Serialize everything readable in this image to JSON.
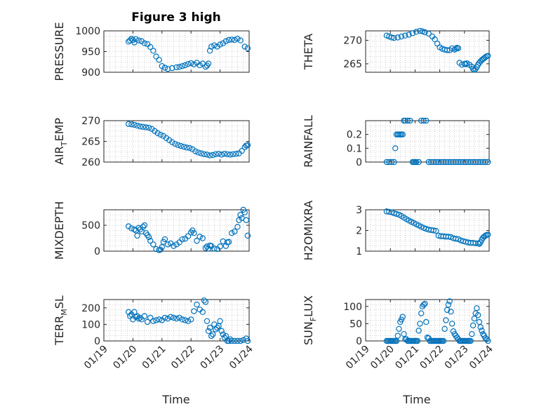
{
  "figure": {
    "title": "Figure 3 high",
    "time_label": "Time",
    "date_ticks": [
      "01/19",
      "01/20",
      "01/21",
      "01/22",
      "01/23",
      "01/24"
    ]
  },
  "colors": {
    "marker": "#0072BD",
    "axis": "#262626",
    "grid": "#b0b0b0"
  },
  "chart_data": [
    {
      "type": "scatter",
      "name": "pressure",
      "ylabel": "PRESSURE",
      "ylim": [
        900,
        1000
      ],
      "yticks": [
        900,
        950,
        1000
      ],
      "xlim": [
        0,
        5
      ],
      "xticklabels": [],
      "x": [
        0.85,
        0.9,
        0.95,
        1.0,
        1.05,
        1.1,
        1.2,
        1.3,
        1.4,
        1.5,
        1.6,
        1.7,
        1.8,
        1.9,
        2.0,
        2.1,
        2.2,
        2.35,
        2.5,
        2.6,
        2.7,
        2.8,
        2.9,
        3.0,
        3.1,
        3.2,
        3.3,
        3.4,
        3.5,
        3.55,
        3.6,
        3.65,
        3.7,
        3.8,
        3.9,
        4.0,
        4.1,
        4.2,
        4.3,
        4.4,
        4.5,
        4.6,
        4.7,
        4.85,
        4.95
      ],
      "y": [
        974,
        977,
        981,
        978,
        972,
        980,
        977,
        975,
        970,
        968,
        961,
        952,
        938,
        930,
        915,
        911,
        908,
        910,
        912,
        913,
        915,
        917,
        920,
        922,
        919,
        923,
        917,
        921,
        913,
        916,
        921,
        952,
        962,
        965,
        962,
        967,
        970,
        975,
        978,
        979,
        978,
        981,
        977,
        962,
        958
      ]
    },
    {
      "type": "scatter",
      "name": "theta",
      "ylabel": "THETA",
      "ylim": [
        263.2,
        272
      ],
      "yticks": [
        265,
        270
      ],
      "xlim": [
        0,
        5
      ],
      "xticklabels": [],
      "x": [
        0.85,
        0.95,
        1.05,
        1.15,
        1.3,
        1.45,
        1.6,
        1.75,
        1.9,
        2.05,
        2.2,
        2.3,
        2.4,
        2.55,
        2.7,
        2.8,
        2.9,
        3.0,
        3.1,
        3.2,
        3.3,
        3.4,
        3.5,
        3.6,
        3.65,
        3.7,
        3.75,
        3.8,
        3.9,
        4.0,
        4.05,
        4.1,
        4.2,
        4.3,
        4.35,
        4.4,
        4.45,
        4.5,
        4.55,
        4.6,
        4.65,
        4.7,
        4.75,
        4.8,
        4.85,
        4.9,
        4.95
      ],
      "y": [
        271.0,
        270.8,
        270.6,
        270.5,
        270.6,
        270.8,
        271.0,
        271.2,
        271.5,
        271.8,
        272.0,
        271.9,
        271.7,
        271.4,
        270.8,
        270.2,
        269.3,
        268.5,
        268.2,
        268.0,
        267.9,
        267.9,
        268.3,
        268.0,
        268.2,
        268.4,
        268.3,
        265.2,
        264.8,
        265.0,
        264.9,
        265.1,
        264.8,
        264.4,
        263.9,
        263.7,
        263.9,
        264.3,
        264.8,
        265.2,
        265.5,
        265.8,
        266.0,
        266.2,
        266.4,
        266.6,
        266.7
      ]
    },
    {
      "type": "scatter",
      "name": "air_temp",
      "ylabel_main": "AIR",
      "ylabel_sub": "T",
      "ylabel_rest": "EMP",
      "ylim": [
        260,
        270
      ],
      "yticks": [
        260,
        265,
        270
      ],
      "xlim": [
        0,
        5
      ],
      "xticklabels": [],
      "x": [
        0.85,
        0.95,
        1.05,
        1.15,
        1.25,
        1.35,
        1.45,
        1.55,
        1.65,
        1.75,
        1.85,
        1.95,
        2.05,
        2.15,
        2.25,
        2.35,
        2.45,
        2.55,
        2.65,
        2.75,
        2.85,
        2.95,
        3.05,
        3.15,
        3.25,
        3.35,
        3.45,
        3.55,
        3.65,
        3.75,
        3.85,
        3.95,
        4.05,
        4.15,
        4.25,
        4.35,
        4.45,
        4.55,
        4.65,
        4.75,
        4.85,
        4.9,
        4.95
      ],
      "y": [
        269.2,
        269.1,
        269.0,
        268.8,
        268.6,
        268.5,
        268.4,
        268.3,
        268.0,
        267.5,
        267.0,
        266.6,
        266.3,
        265.8,
        265.3,
        264.8,
        264.4,
        264.1,
        263.9,
        263.7,
        263.5,
        263.4,
        263.1,
        262.6,
        262.3,
        262.1,
        261.9,
        261.8,
        261.6,
        261.7,
        261.9,
        262.0,
        261.8,
        262.0,
        261.9,
        261.8,
        261.9,
        262.0,
        262.1,
        262.7,
        263.6,
        264.0,
        264.1
      ]
    },
    {
      "type": "scatter",
      "name": "rainfall",
      "ylabel": "RAINFALL",
      "ylim": [
        0,
        0.3
      ],
      "yticks": [
        0,
        0.1,
        0.2
      ],
      "yticklabels": [
        "0",
        "0.1",
        "0.2"
      ],
      "xlim": [
        0,
        5
      ],
      "xticklabels": [],
      "x": [
        0.85,
        0.95,
        1.05,
        1.15,
        1.2,
        1.25,
        1.3,
        1.35,
        1.4,
        1.45,
        1.5,
        1.55,
        1.6,
        1.7,
        1.8,
        1.9,
        1.95,
        2.0,
        2.05,
        2.15,
        2.25,
        2.35,
        2.45,
        2.55,
        2.65,
        2.75,
        2.85,
        2.95,
        3.05,
        3.15,
        3.25,
        3.35,
        3.45,
        3.55,
        3.65,
        3.75,
        3.85,
        3.95,
        4.05,
        4.15,
        4.25,
        4.35,
        4.45,
        4.55,
        4.65,
        4.75,
        4.85,
        4.95
      ],
      "y": [
        0,
        0,
        0,
        0,
        0.1,
        0.2,
        0.2,
        0.2,
        0.2,
        0.2,
        0.2,
        0.3,
        0.3,
        0.3,
        0.3,
        0,
        0,
        0,
        0,
        0,
        0.3,
        0.3,
        0.3,
        0,
        0,
        0,
        0,
        0,
        0,
        0,
        0,
        0,
        0,
        0,
        0,
        0,
        0,
        0,
        0,
        0,
        0,
        0,
        0,
        0,
        0,
        0,
        0,
        0
      ]
    },
    {
      "type": "scatter",
      "name": "mixdepth",
      "ylabel": "MIXDEPTH",
      "ylim": [
        0,
        800
      ],
      "yticks": [
        0,
        500
      ],
      "xlim": [
        0,
        5
      ],
      "xticklabels": [],
      "x": [
        0.85,
        0.95,
        1.05,
        1.1,
        1.15,
        1.2,
        1.25,
        1.3,
        1.35,
        1.4,
        1.45,
        1.5,
        1.55,
        1.6,
        1.7,
        1.8,
        1.9,
        1.95,
        2.0,
        2.05,
        2.1,
        2.2,
        2.3,
        2.4,
        2.5,
        2.6,
        2.7,
        2.8,
        2.9,
        3.0,
        3.05,
        3.1,
        3.2,
        3.3,
        3.4,
        3.5,
        3.55,
        3.6,
        3.65,
        3.7,
        3.8,
        3.9,
        4.0,
        4.1,
        4.2,
        4.25,
        4.3,
        4.4,
        4.5,
        4.6,
        4.65,
        4.7,
        4.75,
        4.8,
        4.85,
        4.9,
        4.95
      ],
      "y": [
        480,
        440,
        420,
        400,
        300,
        450,
        420,
        380,
        470,
        500,
        350,
        310,
        270,
        200,
        130,
        40,
        20,
        30,
        80,
        180,
        230,
        130,
        150,
        100,
        130,
        170,
        230,
        240,
        290,
        360,
        400,
        350,
        200,
        280,
        250,
        60,
        90,
        50,
        110,
        100,
        50,
        40,
        90,
        190,
        100,
        170,
        180,
        350,
        380,
        470,
        600,
        700,
        640,
        800,
        750,
        600,
        300
      ]
    },
    {
      "type": "scatter",
      "name": "h2omixra",
      "ylabel": "H2OMIXRA",
      "ylim": [
        1,
        3
      ],
      "yticks": [
        1,
        2,
        3
      ],
      "xlim": [
        0,
        5
      ],
      "xticklabels": [],
      "x": [
        0.85,
        0.95,
        1.05,
        1.15,
        1.25,
        1.35,
        1.45,
        1.55,
        1.65,
        1.75,
        1.85,
        1.95,
        2.05,
        2.15,
        2.25,
        2.35,
        2.45,
        2.55,
        2.65,
        2.75,
        2.85,
        2.95,
        3.05,
        3.15,
        3.25,
        3.35,
        3.45,
        3.55,
        3.65,
        3.75,
        3.85,
        3.95,
        4.05,
        4.15,
        4.25,
        4.35,
        4.45,
        4.55,
        4.6,
        4.65,
        4.7,
        4.75,
        4.8,
        4.85,
        4.9,
        4.95
      ],
      "y": [
        2.92,
        2.9,
        2.88,
        2.83,
        2.8,
        2.76,
        2.7,
        2.62,
        2.55,
        2.48,
        2.42,
        2.36,
        2.3,
        2.24,
        2.18,
        2.12,
        2.08,
        2.04,
        2.02,
        2.0,
        1.98,
        1.75,
        1.72,
        1.72,
        1.7,
        1.7,
        1.68,
        1.62,
        1.6,
        1.58,
        1.52,
        1.48,
        1.45,
        1.42,
        1.4,
        1.4,
        1.38,
        1.38,
        1.35,
        1.42,
        1.55,
        1.65,
        1.7,
        1.75,
        1.78,
        1.8
      ]
    },
    {
      "type": "scatter",
      "name": "terr_msl",
      "ylabel_main": "TERR",
      "ylabel_sub": "M",
      "ylabel_rest": "SL",
      "ylim": [
        0,
        250
      ],
      "yticks": [
        0,
        100,
        200
      ],
      "xlim": [
        0,
        5
      ],
      "xticklabels": [
        "01/19",
        "01/20",
        "01/21",
        "01/22",
        "01/23",
        "01/24"
      ],
      "x": [
        0.85,
        0.9,
        0.95,
        1.0,
        1.05,
        1.1,
        1.15,
        1.2,
        1.25,
        1.3,
        1.4,
        1.5,
        1.6,
        1.7,
        1.8,
        1.9,
        2.0,
        2.1,
        2.2,
        2.3,
        2.4,
        2.5,
        2.6,
        2.7,
        2.8,
        2.9,
        3.0,
        3.1,
        3.2,
        3.3,
        3.4,
        3.45,
        3.5,
        3.55,
        3.6,
        3.65,
        3.7,
        3.75,
        3.8,
        3.85,
        3.9,
        3.95,
        4.0,
        4.05,
        4.1,
        4.15,
        4.2,
        4.25,
        4.3,
        4.35,
        4.4,
        4.5,
        4.6,
        4.7,
        4.8,
        4.9,
        4.95
      ],
      "y": [
        175,
        150,
        160,
        130,
        175,
        145,
        150,
        135,
        140,
        130,
        150,
        115,
        140,
        120,
        125,
        130,
        125,
        140,
        135,
        145,
        140,
        135,
        140,
        130,
        125,
        120,
        130,
        180,
        220,
        190,
        175,
        245,
        235,
        120,
        60,
        80,
        30,
        40,
        100,
        70,
        80,
        90,
        120,
        60,
        40,
        20,
        30,
        0,
        0,
        10,
        0,
        0,
        0,
        0,
        5,
        15,
        0
      ]
    },
    {
      "type": "scatter",
      "name": "sun_flux",
      "ylabel_main": "SUN",
      "ylabel_sub": "F",
      "ylabel_rest": "LUX",
      "ylim": [
        0,
        120
      ],
      "yticks": [
        0,
        50,
        100
      ],
      "xlim": [
        0,
        5
      ],
      "xticklabels": [
        "01/19",
        "01/20",
        "01/21",
        "01/22",
        "01/23",
        "01/24"
      ],
      "x": [
        0.85,
        0.9,
        0.95,
        1.0,
        1.05,
        1.1,
        1.15,
        1.2,
        1.25,
        1.3,
        1.35,
        1.4,
        1.45,
        1.5,
        1.55,
        1.6,
        1.65,
        1.7,
        1.75,
        1.8,
        1.85,
        1.9,
        1.95,
        2.0,
        2.05,
        2.1,
        2.15,
        2.2,
        2.25,
        2.3,
        2.35,
        2.4,
        2.45,
        2.5,
        2.55,
        2.6,
        2.65,
        2.7,
        2.75,
        2.8,
        2.85,
        2.9,
        2.95,
        3.0,
        3.05,
        3.1,
        3.15,
        3.2,
        3.25,
        3.3,
        3.35,
        3.4,
        3.45,
        3.5,
        3.55,
        3.6,
        3.65,
        3.7,
        3.75,
        3.8,
        3.85,
        3.9,
        3.95,
        4.0,
        4.05,
        4.1,
        4.15,
        4.2,
        4.25,
        4.3,
        4.35,
        4.4,
        4.45,
        4.5,
        4.55,
        4.6,
        4.65,
        4.7,
        4.75,
        4.8,
        4.85,
        4.9,
        4.95
      ],
      "y": [
        0,
        0,
        0,
        0,
        0,
        0,
        0,
        0,
        0,
        15,
        35,
        55,
        62,
        70,
        20,
        5,
        5,
        0,
        0,
        0,
        0,
        0,
        0,
        0,
        0,
        0,
        30,
        50,
        80,
        100,
        105,
        108,
        55,
        10,
        8,
        0,
        0,
        0,
        0,
        0,
        0,
        0,
        0,
        0,
        0,
        0,
        0,
        35,
        60,
        90,
        105,
        115,
        85,
        50,
        28,
        20,
        15,
        10,
        5,
        0,
        0,
        0,
        0,
        0,
        0,
        0,
        0,
        0,
        0,
        20,
        45,
        65,
        80,
        95,
        75,
        55,
        40,
        30,
        20,
        15,
        8,
        5,
        0
      ]
    }
  ]
}
